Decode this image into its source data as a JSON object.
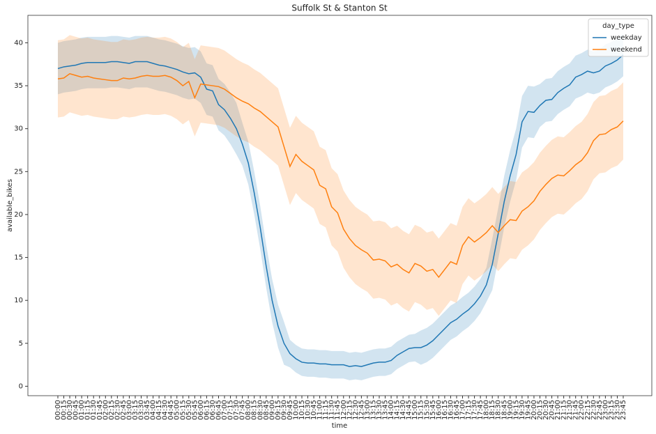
{
  "chart_data": {
    "type": "line",
    "title": "Suffolk St & Stanton St",
    "x_label": "time",
    "y_label": "available_bikes",
    "categories": [
      "00:00",
      "00:15",
      "00:30",
      "00:45",
      "01:00",
      "01:15",
      "01:30",
      "01:45",
      "02:00",
      "02:15",
      "02:30",
      "02:45",
      "03:00",
      "03:15",
      "03:30",
      "03:45",
      "04:00",
      "04:15",
      "04:30",
      "04:45",
      "05:00",
      "05:15",
      "05:30",
      "05:45",
      "06:00",
      "06:15",
      "06:30",
      "06:45",
      "07:00",
      "07:15",
      "07:30",
      "07:45",
      "08:00",
      "08:15",
      "08:30",
      "08:45",
      "09:00",
      "09:15",
      "09:30",
      "09:45",
      "10:00",
      "10:15",
      "10:30",
      "10:45",
      "11:00",
      "11:15",
      "11:30",
      "11:45",
      "12:00",
      "12:15",
      "12:30",
      "12:45",
      "13:00",
      "13:15",
      "13:30",
      "13:45",
      "14:00",
      "14:15",
      "14:30",
      "14:45",
      "15:00",
      "15:15",
      "15:30",
      "15:45",
      "16:00",
      "16:15",
      "16:30",
      "16:45",
      "17:00",
      "17:15",
      "17:30",
      "17:45",
      "18:00",
      "18:15",
      "18:30",
      "18:45",
      "19:00",
      "19:15",
      "19:30",
      "19:45",
      "20:00",
      "20:15",
      "20:30",
      "20:45",
      "21:00",
      "21:15",
      "21:30",
      "21:45",
      "22:00",
      "22:15",
      "22:30",
      "22:45",
      "23:00",
      "23:15",
      "23:30",
      "23:45"
    ],
    "legend_title": "day_type",
    "legend_loc": "upper right",
    "ylim": [
      -1.1,
      43.2
    ],
    "yticks": [
      0,
      5,
      10,
      15,
      20,
      25,
      30,
      35,
      40
    ],
    "grid": false,
    "series": [
      {
        "name": "weekday",
        "color": "#1f77b4",
        "values": [
          37.0,
          37.2,
          37.3,
          37.4,
          37.6,
          37.7,
          37.7,
          37.7,
          37.7,
          37.8,
          37.8,
          37.7,
          37.6,
          37.8,
          37.8,
          37.8,
          37.6,
          37.4,
          37.3,
          37.1,
          36.9,
          36.6,
          36.4,
          36.5,
          36.0,
          34.6,
          34.4,
          32.8,
          32.2,
          31.2,
          30.0,
          28.2,
          26.0,
          22.5,
          18.5,
          14.0,
          10.0,
          7.0,
          5.0,
          3.8,
          3.2,
          2.8,
          2.7,
          2.7,
          2.6,
          2.6,
          2.5,
          2.5,
          2.5,
          2.3,
          2.4,
          2.3,
          2.5,
          2.7,
          2.8,
          2.8,
          3.0,
          3.6,
          4.0,
          4.4,
          4.5,
          4.5,
          4.8,
          5.3,
          6.0,
          6.7,
          7.4,
          7.8,
          8.4,
          8.9,
          9.6,
          10.5,
          11.8,
          14.2,
          17.8,
          21.5,
          24.5,
          27.0,
          30.8,
          32.0,
          31.9,
          32.7,
          33.3,
          33.4,
          34.2,
          34.7,
          35.1,
          36.0,
          36.3,
          36.7,
          36.5,
          36.7,
          37.3,
          37.6,
          38.0,
          38.6
        ],
        "lower": [
          34.0,
          34.2,
          34.3,
          34.4,
          34.6,
          34.7,
          34.7,
          34.7,
          34.7,
          34.8,
          34.8,
          34.7,
          34.6,
          34.8,
          34.8,
          34.8,
          34.6,
          34.4,
          34.3,
          34.1,
          33.9,
          33.6,
          33.4,
          33.5,
          33.0,
          31.6,
          31.4,
          29.8,
          29.2,
          28.2,
          27.0,
          25.7,
          23.5,
          20.0,
          16.0,
          11.5,
          7.5,
          4.5,
          2.5,
          2.2,
          1.6,
          1.2,
          1.1,
          1.1,
          1.0,
          1.0,
          0.9,
          0.9,
          0.9,
          0.7,
          0.8,
          0.7,
          0.9,
          1.1,
          1.2,
          1.2,
          1.4,
          2.0,
          2.4,
          2.8,
          2.9,
          2.5,
          2.8,
          3.3,
          4.0,
          4.7,
          5.4,
          5.8,
          6.4,
          6.9,
          7.6,
          8.5,
          9.8,
          11.2,
          14.8,
          18.5,
          21.5,
          24.0,
          27.8,
          29.0,
          28.9,
          30.2,
          30.8,
          30.9,
          31.7,
          32.2,
          32.6,
          33.5,
          33.8,
          34.2,
          34.0,
          34.2,
          34.8,
          35.1,
          35.5,
          36.1
        ],
        "upper": [
          40.0,
          40.2,
          40.3,
          40.4,
          40.6,
          40.7,
          40.7,
          40.7,
          40.7,
          40.8,
          40.8,
          40.7,
          40.6,
          40.8,
          40.8,
          40.8,
          40.6,
          40.4,
          40.3,
          40.1,
          39.9,
          39.6,
          39.4,
          39.5,
          39.0,
          37.6,
          37.4,
          35.8,
          35.2,
          34.2,
          33.0,
          30.7,
          28.5,
          25.0,
          21.0,
          16.5,
          12.5,
          9.5,
          7.5,
          5.4,
          4.8,
          4.4,
          4.3,
          4.3,
          4.2,
          4.2,
          4.1,
          4.1,
          4.1,
          3.9,
          4.0,
          3.9,
          4.1,
          4.3,
          4.4,
          4.4,
          4.6,
          5.2,
          5.6,
          6.0,
          6.1,
          6.5,
          6.8,
          7.3,
          8.0,
          8.7,
          9.4,
          9.8,
          10.4,
          10.9,
          11.6,
          12.5,
          13.8,
          17.2,
          20.8,
          24.5,
          27.5,
          30.0,
          33.8,
          35.0,
          34.9,
          35.2,
          35.8,
          35.9,
          36.7,
          37.2,
          37.6,
          38.5,
          38.8,
          39.2,
          39.0,
          39.2,
          39.8,
          40.1,
          40.5,
          41.1
        ]
      },
      {
        "name": "weekend",
        "color": "#ff7f0e",
        "values": [
          35.8,
          35.9,
          36.4,
          36.2,
          36.0,
          36.1,
          35.9,
          35.8,
          35.7,
          35.6,
          35.6,
          35.9,
          35.8,
          35.9,
          36.1,
          36.2,
          36.1,
          36.1,
          36.2,
          36.0,
          35.6,
          35.0,
          35.5,
          33.6,
          35.2,
          35.1,
          35.0,
          34.9,
          34.6,
          34.1,
          33.6,
          33.2,
          32.9,
          32.4,
          32.0,
          31.4,
          30.8,
          30.2,
          27.9,
          25.6,
          27.0,
          26.2,
          25.7,
          25.2,
          23.4,
          23.0,
          20.9,
          20.2,
          18.3,
          17.2,
          16.4,
          15.9,
          15.5,
          14.7,
          14.8,
          14.6,
          13.9,
          14.2,
          13.6,
          13.2,
          14.3,
          14.0,
          13.4,
          13.6,
          12.7,
          13.6,
          14.5,
          14.2,
          16.4,
          17.4,
          16.8,
          17.3,
          17.9,
          18.7,
          17.9,
          18.7,
          19.4,
          19.3,
          20.4,
          20.9,
          21.6,
          22.7,
          23.5,
          24.2,
          24.6,
          24.5,
          25.1,
          25.8,
          26.3,
          27.2,
          28.6,
          29.3,
          29.4,
          29.9,
          30.2,
          30.9
        ],
        "lower": [
          31.3,
          31.4,
          31.9,
          31.7,
          31.5,
          31.6,
          31.4,
          31.3,
          31.2,
          31.1,
          31.1,
          31.4,
          31.3,
          31.4,
          31.6,
          31.7,
          31.6,
          31.6,
          31.7,
          31.5,
          31.1,
          30.5,
          31.0,
          29.1,
          30.7,
          30.6,
          30.5,
          30.4,
          30.1,
          29.6,
          29.1,
          28.7,
          28.4,
          27.9,
          27.5,
          26.9,
          26.3,
          25.7,
          23.4,
          21.1,
          22.5,
          21.7,
          21.2,
          20.7,
          18.9,
          18.5,
          16.4,
          15.7,
          13.8,
          12.7,
          11.9,
          11.4,
          11.0,
          10.2,
          10.3,
          10.1,
          9.4,
          9.7,
          9.1,
          8.7,
          9.8,
          9.5,
          8.9,
          9.1,
          8.2,
          9.1,
          10.0,
          9.7,
          11.9,
          12.9,
          12.3,
          12.8,
          13.4,
          14.2,
          13.4,
          14.2,
          14.9,
          14.8,
          15.9,
          16.4,
          17.1,
          18.2,
          19.0,
          19.7,
          20.1,
          20.0,
          20.6,
          21.3,
          21.8,
          22.7,
          24.1,
          24.8,
          24.9,
          25.4,
          25.7,
          26.4
        ],
        "upper": [
          40.3,
          40.4,
          40.9,
          40.7,
          40.5,
          40.6,
          40.4,
          40.3,
          40.2,
          40.1,
          40.1,
          40.4,
          40.3,
          40.4,
          40.6,
          40.7,
          40.6,
          40.6,
          40.7,
          40.5,
          40.1,
          39.5,
          40.0,
          38.1,
          39.7,
          39.6,
          39.5,
          39.4,
          39.1,
          38.6,
          38.1,
          37.7,
          37.4,
          36.9,
          36.5,
          35.9,
          35.3,
          34.7,
          32.4,
          30.1,
          31.5,
          30.7,
          30.2,
          29.7,
          27.9,
          27.5,
          25.4,
          24.7,
          22.8,
          21.7,
          20.9,
          20.4,
          20.0,
          19.2,
          19.3,
          19.1,
          18.4,
          18.7,
          18.1,
          17.7,
          18.8,
          18.5,
          17.9,
          18.1,
          17.2,
          18.1,
          19.0,
          18.7,
          20.9,
          21.9,
          21.3,
          21.8,
          22.4,
          23.2,
          22.4,
          23.2,
          23.9,
          23.8,
          24.9,
          25.4,
          26.1,
          27.2,
          28.0,
          28.7,
          29.1,
          29.0,
          29.6,
          30.3,
          30.8,
          31.7,
          33.1,
          33.8,
          33.9,
          34.4,
          34.7,
          35.4
        ]
      }
    ]
  }
}
